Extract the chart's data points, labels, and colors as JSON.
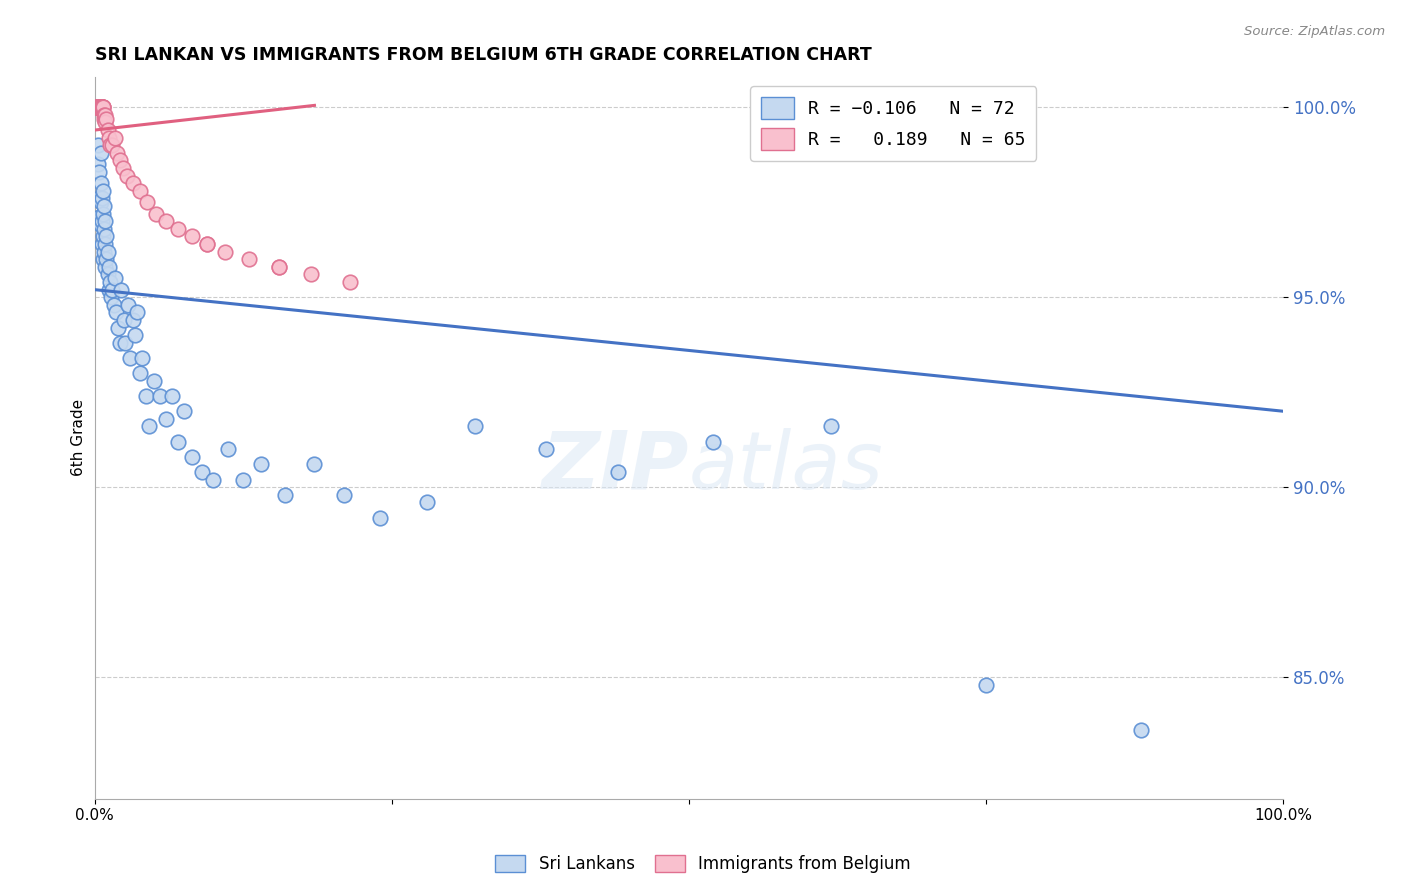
{
  "title": "SRI LANKAN VS IMMIGRANTS FROM BELGIUM 6TH GRADE CORRELATION CHART",
  "source": "Source: ZipAtlas.com",
  "ylabel": "6th Grade",
  "xlim": [
    0.0,
    1.0
  ],
  "ylim": [
    0.818,
    1.008
  ],
  "yticks": [
    0.85,
    0.9,
    0.95,
    1.0
  ],
  "ytick_labels": [
    "85.0%",
    "90.0%",
    "95.0%",
    "100.0%"
  ],
  "watermark": "ZIPatlas",
  "legend_r1": "R = -0.106",
  "legend_n1": "N = 72",
  "legend_r2": "R =  0.189",
  "legend_n2": "N = 65",
  "blue_fill": "#c5d9f0",
  "blue_edge": "#5b8fd4",
  "pink_fill": "#f9c0ce",
  "pink_edge": "#e07090",
  "sri_lankans_x": [
    0.003,
    0.003,
    0.004,
    0.004,
    0.004,
    0.005,
    0.005,
    0.005,
    0.005,
    0.006,
    0.006,
    0.006,
    0.007,
    0.007,
    0.007,
    0.007,
    0.008,
    0.008,
    0.008,
    0.009,
    0.009,
    0.009,
    0.01,
    0.01,
    0.011,
    0.011,
    0.012,
    0.012,
    0.013,
    0.014,
    0.015,
    0.016,
    0.017,
    0.018,
    0.02,
    0.021,
    0.022,
    0.025,
    0.026,
    0.028,
    0.03,
    0.032,
    0.034,
    0.036,
    0.038,
    0.04,
    0.043,
    0.046,
    0.05,
    0.055,
    0.06,
    0.065,
    0.07,
    0.075,
    0.082,
    0.09,
    0.1,
    0.112,
    0.125,
    0.14,
    0.16,
    0.185,
    0.21,
    0.24,
    0.28,
    0.32,
    0.38,
    0.44,
    0.52,
    0.62,
    0.75,
    0.88
  ],
  "sri_lankans_y": [
    0.985,
    0.99,
    0.983,
    0.976,
    0.971,
    0.988,
    0.98,
    0.975,
    0.969,
    0.976,
    0.97,
    0.964,
    0.978,
    0.972,
    0.966,
    0.96,
    0.974,
    0.968,
    0.962,
    0.97,
    0.964,
    0.958,
    0.966,
    0.96,
    0.962,
    0.956,
    0.958,
    0.952,
    0.954,
    0.95,
    0.952,
    0.948,
    0.955,
    0.946,
    0.942,
    0.938,
    0.952,
    0.944,
    0.938,
    0.948,
    0.934,
    0.944,
    0.94,
    0.946,
    0.93,
    0.934,
    0.924,
    0.916,
    0.928,
    0.924,
    0.918,
    0.924,
    0.912,
    0.92,
    0.908,
    0.904,
    0.902,
    0.91,
    0.902,
    0.906,
    0.898,
    0.906,
    0.898,
    0.892,
    0.896,
    0.916,
    0.91,
    0.904,
    0.912,
    0.916,
    0.848,
    0.836
  ],
  "belgium_x": [
    0.001,
    0.001,
    0.001,
    0.002,
    0.002,
    0.002,
    0.002,
    0.002,
    0.002,
    0.003,
    0.003,
    0.003,
    0.003,
    0.003,
    0.003,
    0.003,
    0.004,
    0.004,
    0.004,
    0.004,
    0.004,
    0.004,
    0.004,
    0.005,
    0.005,
    0.005,
    0.005,
    0.005,
    0.005,
    0.006,
    0.006,
    0.006,
    0.006,
    0.007,
    0.007,
    0.007,
    0.008,
    0.008,
    0.009,
    0.009,
    0.01,
    0.011,
    0.012,
    0.013,
    0.015,
    0.017,
    0.019,
    0.021,
    0.024,
    0.027,
    0.032,
    0.038,
    0.044,
    0.052,
    0.06,
    0.07,
    0.082,
    0.095,
    0.11,
    0.13,
    0.155,
    0.182,
    0.215,
    0.155,
    0.095
  ],
  "belgium_y": [
    1.0,
    1.0,
    1.0,
    1.0,
    1.0,
    1.0,
    1.0,
    1.0,
    1.0,
    1.0,
    1.0,
    1.0,
    1.0,
    1.0,
    1.0,
    1.0,
    1.0,
    1.0,
    1.0,
    1.0,
    1.0,
    1.0,
    1.0,
    1.0,
    1.0,
    1.0,
    1.0,
    1.0,
    1.0,
    1.0,
    1.0,
    1.0,
    1.0,
    1.0,
    1.0,
    1.0,
    0.998,
    0.997,
    0.998,
    0.996,
    0.997,
    0.994,
    0.992,
    0.99,
    0.99,
    0.992,
    0.988,
    0.986,
    0.984,
    0.982,
    0.98,
    0.978,
    0.975,
    0.972,
    0.97,
    0.968,
    0.966,
    0.964,
    0.962,
    0.96,
    0.958,
    0.956,
    0.954,
    0.958,
    0.964
  ],
  "blue_trend_x0": 0.0,
  "blue_trend_x1": 1.0,
  "blue_trend_y0": 0.952,
  "blue_trend_y1": 0.92,
  "pink_trend_x0": 0.0,
  "pink_trend_x1": 0.185,
  "pink_trend_y0": 0.994,
  "pink_trend_y1": 1.0005
}
